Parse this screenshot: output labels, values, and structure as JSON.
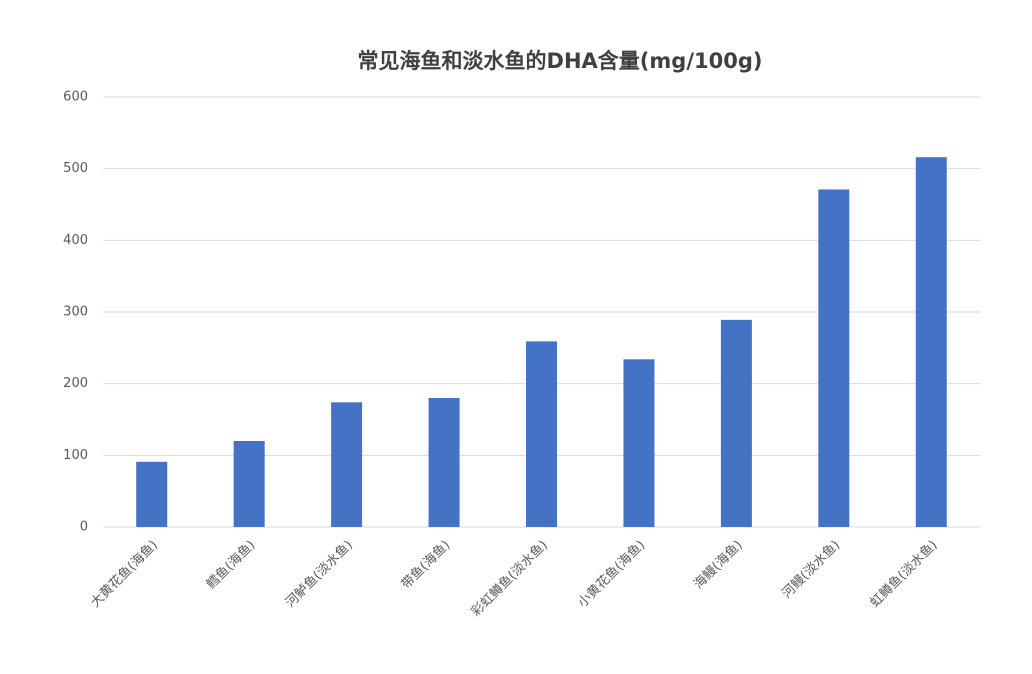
{
  "chart_data": {
    "type": "bar",
    "title": "常见海鱼和淡水鱼的DHA含量(mg/100g)",
    "categories": [
      "大黄花鱼(海鱼)",
      "鳕鱼(海鱼)",
      "河鲈鱼(淡水鱼)",
      "带鱼(海鱼)",
      "彩虹鳟鱼(淡水鱼)",
      "小黄花鱼(海鱼)",
      "海鳗(海鱼)",
      "河鳗(淡水鱼)",
      "虹鳟鱼(淡水鱼)"
    ],
    "values": [
      91,
      120,
      174,
      180,
      259,
      234,
      289,
      471,
      516
    ],
    "color": "#4472c4",
    "ylim": [
      0,
      600
    ],
    "yticks": [
      0,
      100,
      200,
      300,
      400,
      500,
      600
    ],
    "grid": true
  }
}
